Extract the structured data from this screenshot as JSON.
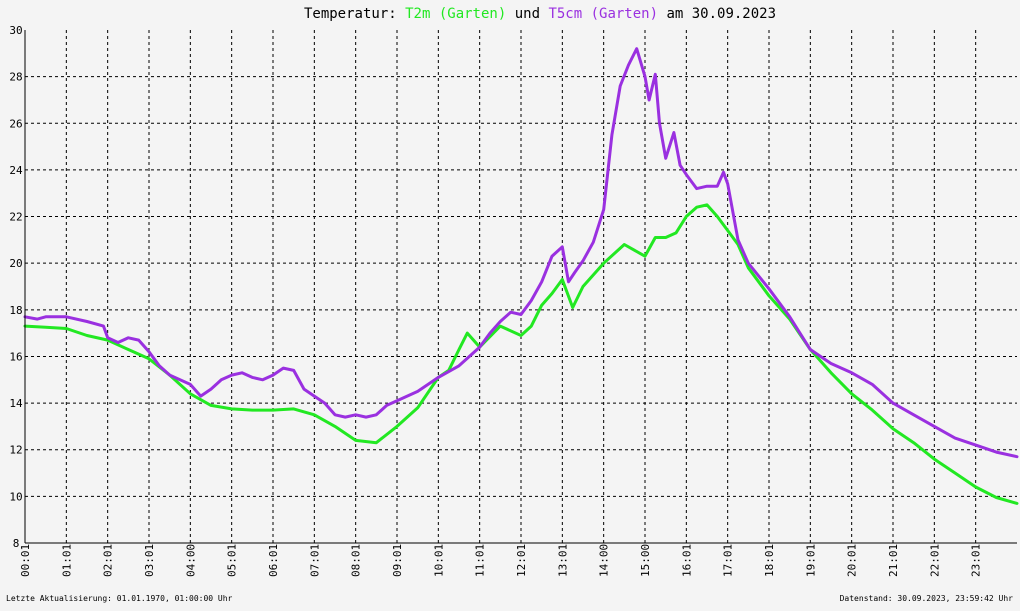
{
  "chart_data": {
    "type": "line",
    "title_parts": {
      "prefix": "Temperatur: ",
      "series1": "T2m (Garten)",
      "mid": " und ",
      "series2": "T5cm (Garten)",
      "suffix": " am 30.09.2023"
    },
    "ylim": [
      8,
      30
    ],
    "y_ticks": [
      "8",
      "10",
      "12",
      "14",
      "16",
      "18",
      "20",
      "22",
      "24",
      "26",
      "28",
      "30"
    ],
    "x_range_hours": [
      0,
      24
    ],
    "x_ticks": [
      {
        "hour": 0,
        "label": "00:01"
      },
      {
        "hour": 1,
        "label": "01:01"
      },
      {
        "hour": 2,
        "label": "02:01"
      },
      {
        "hour": 3,
        "label": "03:01"
      },
      {
        "hour": 4,
        "label": "04:00"
      },
      {
        "hour": 5,
        "label": "05:01"
      },
      {
        "hour": 6,
        "label": "06:01"
      },
      {
        "hour": 7,
        "label": "07:01"
      },
      {
        "hour": 8,
        "label": "08:01"
      },
      {
        "hour": 9,
        "label": "09:01"
      },
      {
        "hour": 10,
        "label": "10:01"
      },
      {
        "hour": 11,
        "label": "11:01"
      },
      {
        "hour": 12,
        "label": "12:01"
      },
      {
        "hour": 13,
        "label": "13:01"
      },
      {
        "hour": 14,
        "label": "14:00"
      },
      {
        "hour": 15,
        "label": "15:00"
      },
      {
        "hour": 16,
        "label": "16:01"
      },
      {
        "hour": 17,
        "label": "17:01"
      },
      {
        "hour": 18,
        "label": "18:01"
      },
      {
        "hour": 19,
        "label": "19:01"
      },
      {
        "hour": 20,
        "label": "20:01"
      },
      {
        "hour": 21,
        "label": "21:01"
      },
      {
        "hour": 22,
        "label": "22:01"
      },
      {
        "hour": 23,
        "label": "23:01"
      }
    ],
    "grid": true,
    "series": [
      {
        "name": "T2m (Garten)",
        "color": "#22e822",
        "points": [
          [
            0.0,
            17.3
          ],
          [
            0.5,
            17.25
          ],
          [
            1.0,
            17.2
          ],
          [
            1.5,
            16.9
          ],
          [
            2.0,
            16.7
          ],
          [
            2.5,
            16.3
          ],
          [
            3.0,
            15.9
          ],
          [
            3.5,
            15.2
          ],
          [
            4.0,
            14.4
          ],
          [
            4.5,
            13.9
          ],
          [
            5.0,
            13.75
          ],
          [
            5.5,
            13.7
          ],
          [
            6.0,
            13.7
          ],
          [
            6.5,
            13.75
          ],
          [
            7.0,
            13.5
          ],
          [
            7.5,
            13.0
          ],
          [
            8.0,
            12.4
          ],
          [
            8.5,
            12.3
          ],
          [
            9.0,
            13.0
          ],
          [
            9.5,
            13.8
          ],
          [
            10.0,
            15.1
          ],
          [
            10.25,
            15.4
          ],
          [
            10.5,
            16.3
          ],
          [
            10.7,
            17.0
          ],
          [
            11.0,
            16.4
          ],
          [
            11.5,
            17.3
          ],
          [
            12.0,
            16.9
          ],
          [
            12.25,
            17.3
          ],
          [
            12.5,
            18.2
          ],
          [
            12.75,
            18.7
          ],
          [
            13.0,
            19.3
          ],
          [
            13.25,
            18.1
          ],
          [
            13.5,
            19.0
          ],
          [
            14.0,
            20.0
          ],
          [
            14.5,
            20.8
          ],
          [
            15.0,
            20.3
          ],
          [
            15.25,
            21.1
          ],
          [
            15.5,
            21.1
          ],
          [
            15.75,
            21.3
          ],
          [
            16.0,
            22.0
          ],
          [
            16.25,
            22.4
          ],
          [
            16.5,
            22.5
          ],
          [
            16.75,
            22.0
          ],
          [
            17.0,
            21.4
          ],
          [
            17.25,
            20.8
          ],
          [
            17.5,
            19.8
          ],
          [
            18.0,
            18.6
          ],
          [
            18.5,
            17.6
          ],
          [
            19.0,
            16.3
          ],
          [
            19.5,
            15.3
          ],
          [
            20.0,
            14.4
          ],
          [
            20.5,
            13.7
          ],
          [
            21.0,
            12.9
          ],
          [
            21.5,
            12.3
          ],
          [
            22.0,
            11.6
          ],
          [
            22.5,
            11.0
          ],
          [
            23.0,
            10.4
          ],
          [
            23.5,
            9.95
          ],
          [
            24.0,
            9.7
          ]
        ]
      },
      {
        "name": "T5cm (Garten)",
        "color": "#9a30e0",
        "points": [
          [
            0.0,
            17.7
          ],
          [
            0.3,
            17.6
          ],
          [
            0.5,
            17.7
          ],
          [
            1.0,
            17.7
          ],
          [
            1.5,
            17.5
          ],
          [
            1.9,
            17.3
          ],
          [
            2.0,
            16.8
          ],
          [
            2.25,
            16.6
          ],
          [
            2.5,
            16.8
          ],
          [
            2.75,
            16.7
          ],
          [
            3.0,
            16.2
          ],
          [
            3.25,
            15.6
          ],
          [
            3.5,
            15.2
          ],
          [
            4.0,
            14.8
          ],
          [
            4.25,
            14.3
          ],
          [
            4.5,
            14.6
          ],
          [
            4.75,
            15.0
          ],
          [
            5.0,
            15.2
          ],
          [
            5.25,
            15.3
          ],
          [
            5.5,
            15.1
          ],
          [
            5.75,
            15.0
          ],
          [
            6.0,
            15.2
          ],
          [
            6.25,
            15.5
          ],
          [
            6.5,
            15.4
          ],
          [
            6.75,
            14.6
          ],
          [
            7.0,
            14.3
          ],
          [
            7.25,
            14.0
          ],
          [
            7.5,
            13.5
          ],
          [
            7.75,
            13.4
          ],
          [
            8.0,
            13.5
          ],
          [
            8.25,
            13.4
          ],
          [
            8.5,
            13.5
          ],
          [
            8.75,
            13.9
          ],
          [
            9.0,
            14.1
          ],
          [
            9.5,
            14.5
          ],
          [
            10.0,
            15.1
          ],
          [
            10.5,
            15.6
          ],
          [
            10.75,
            16.0
          ],
          [
            11.0,
            16.4
          ],
          [
            11.25,
            17.0
          ],
          [
            11.5,
            17.5
          ],
          [
            11.75,
            17.9
          ],
          [
            12.0,
            17.8
          ],
          [
            12.25,
            18.4
          ],
          [
            12.5,
            19.2
          ],
          [
            12.75,
            20.3
          ],
          [
            13.0,
            20.7
          ],
          [
            13.15,
            19.2
          ],
          [
            13.3,
            19.6
          ],
          [
            13.5,
            20.1
          ],
          [
            13.75,
            20.9
          ],
          [
            14.0,
            22.3
          ],
          [
            14.2,
            25.5
          ],
          [
            14.4,
            27.6
          ],
          [
            14.6,
            28.5
          ],
          [
            14.8,
            29.2
          ],
          [
            15.0,
            28.0
          ],
          [
            15.1,
            27.0
          ],
          [
            15.25,
            28.1
          ],
          [
            15.35,
            26.0
          ],
          [
            15.5,
            24.5
          ],
          [
            15.7,
            25.6
          ],
          [
            15.85,
            24.2
          ],
          [
            16.0,
            23.8
          ],
          [
            16.25,
            23.2
          ],
          [
            16.5,
            23.3
          ],
          [
            16.75,
            23.3
          ],
          [
            16.9,
            23.9
          ],
          [
            17.0,
            23.4
          ],
          [
            17.25,
            21.0
          ],
          [
            17.5,
            20.0
          ],
          [
            18.0,
            18.9
          ],
          [
            18.5,
            17.7
          ],
          [
            19.0,
            16.3
          ],
          [
            19.5,
            15.7
          ],
          [
            20.0,
            15.3
          ],
          [
            20.5,
            14.8
          ],
          [
            21.0,
            14.0
          ],
          [
            21.5,
            13.5
          ],
          [
            22.0,
            13.0
          ],
          [
            22.5,
            12.5
          ],
          [
            23.0,
            12.2
          ],
          [
            23.5,
            11.9
          ],
          [
            24.0,
            11.7
          ]
        ]
      }
    ]
  },
  "footer": {
    "left": "Letzte Aktualisierung: 01.01.1970, 01:00:00 Uhr",
    "right": "Datenstand: 30.09.2023, 23:59:42 Uhr"
  }
}
